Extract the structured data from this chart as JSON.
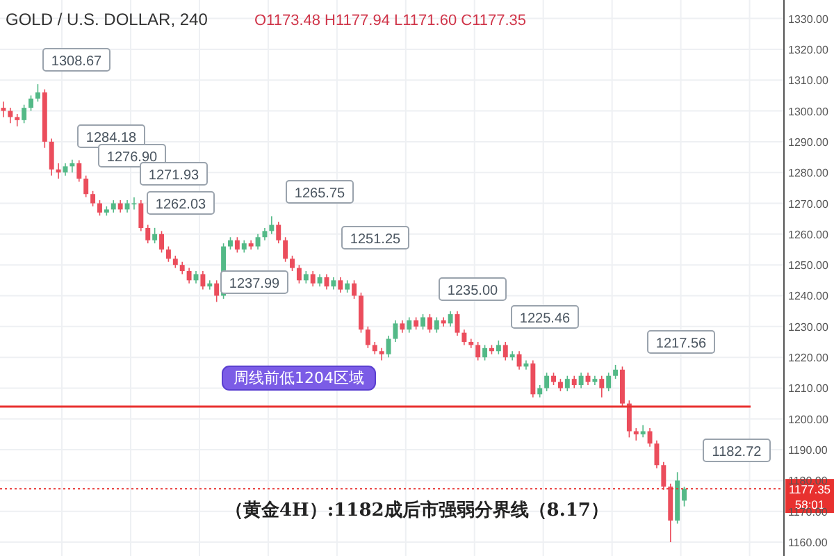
{
  "chart_data": {
    "type": "candlestick",
    "title": "GOLD / U.S. DOLLAR, 240",
    "subtitle": "O1173.48 H1177.94 L1171.60 C1177.35",
    "categories": [
      null,
      null,
      null,
      null,
      null,
      null,
      null,
      null,
      null,
      null,
      null,
      null,
      null,
      null,
      null,
      null,
      null,
      null,
      null,
      null,
      null,
      null,
      null,
      null,
      null,
      null,
      null,
      null,
      null,
      null,
      null,
      null,
      null,
      null,
      null,
      null,
      null,
      null,
      null,
      null,
      null,
      null,
      null,
      null,
      null,
      null,
      null,
      null,
      null,
      null,
      null,
      null,
      null,
      null,
      null,
      null,
      null,
      null,
      null,
      null,
      null,
      null,
      null,
      null,
      null,
      null,
      null,
      null,
      null,
      null,
      null,
      null,
      null,
      null,
      null,
      null,
      null,
      null,
      null,
      null,
      null,
      null,
      null,
      null,
      null,
      null,
      null,
      null,
      null,
      null,
      null,
      null,
      null,
      null,
      null,
      null,
      null,
      null,
      null,
      null,
      null,
      null,
      null,
      null,
      null,
      null,
      null,
      null,
      null,
      null,
      null,
      null,
      null,
      null
    ],
    "ohlc": [
      [
        1301,
        1303,
        1298,
        1300
      ],
      [
        1300,
        1301,
        1296,
        1298
      ],
      [
        1298,
        1299,
        1295,
        1297
      ],
      [
        1297,
        1302,
        1296,
        1301
      ],
      [
        1301,
        1305,
        1300,
        1304
      ],
      [
        1304,
        1308.67,
        1303,
        1306
      ],
      [
        1306,
        1307,
        1288,
        1290
      ],
      [
        1290,
        1291,
        1279,
        1281
      ],
      [
        1281,
        1283,
        1278,
        1280
      ],
      [
        1280,
        1283,
        1279,
        1282
      ],
      [
        1282,
        1284.18,
        1280,
        1283
      ],
      [
        1283,
        1284,
        1277,
        1278
      ],
      [
        1278,
        1279,
        1272,
        1273
      ],
      [
        1273,
        1274,
        1269,
        1270
      ],
      [
        1270,
        1271,
        1266,
        1267
      ],
      [
        1267,
        1269,
        1266,
        1268
      ],
      [
        1268,
        1271,
        1267,
        1270
      ],
      [
        1270,
        1271,
        1267,
        1268
      ],
      [
        1268,
        1271,
        1267,
        1270
      ],
      [
        1270,
        1271.93,
        1268,
        1270
      ],
      [
        1270,
        1271,
        1261,
        1262
      ],
      [
        1262,
        1263,
        1257,
        1258
      ],
      [
        1258,
        1262.03,
        1257,
        1260
      ],
      [
        1260,
        1261,
        1254,
        1255
      ],
      [
        1255,
        1256,
        1251,
        1252
      ],
      [
        1252,
        1253,
        1249,
        1250
      ],
      [
        1250,
        1251,
        1247,
        1248
      ],
      [
        1248,
        1249,
        1244,
        1245
      ],
      [
        1245,
        1248,
        1244,
        1247
      ],
      [
        1247,
        1248,
        1242,
        1243
      ],
      [
        1243,
        1245,
        1242,
        1244
      ],
      [
        1244,
        1245,
        1237.99,
        1240
      ],
      [
        1240,
        1257,
        1239,
        1256
      ],
      [
        1256,
        1259,
        1255,
        1258
      ],
      [
        1258,
        1259,
        1254,
        1255
      ],
      [
        1255,
        1258,
        1254,
        1257
      ],
      [
        1257,
        1258,
        1255,
        1256
      ],
      [
        1256,
        1260,
        1255,
        1259
      ],
      [
        1259,
        1262,
        1258,
        1261
      ],
      [
        1261,
        1265.75,
        1260,
        1263
      ],
      [
        1263,
        1264,
        1257,
        1258
      ],
      [
        1258,
        1259,
        1251,
        1252
      ],
      [
        1252,
        1253,
        1248,
        1249
      ],
      [
        1249,
        1250,
        1244,
        1245
      ],
      [
        1245,
        1248,
        1244,
        1247
      ],
      [
        1247,
        1248,
        1243,
        1244
      ],
      [
        1244,
        1247,
        1243,
        1246
      ],
      [
        1246,
        1247,
        1242,
        1243
      ],
      [
        1243,
        1246,
        1242,
        1245
      ],
      [
        1245,
        1246,
        1241,
        1242
      ],
      [
        1242,
        1245,
        1241,
        1244
      ],
      [
        1244,
        1245,
        1239,
        1240
      ],
      [
        1240,
        1241,
        1228,
        1229
      ],
      [
        1229,
        1230,
        1223,
        1224
      ],
      [
        1224,
        1225,
        1221,
        1222
      ],
      [
        1222,
        1223,
        1219,
        1221
      ],
      [
        1221,
        1227,
        1220,
        1226
      ],
      [
        1226,
        1232,
        1225,
        1231
      ],
      [
        1231,
        1232,
        1228,
        1229
      ],
      [
        1229,
        1233,
        1228,
        1232
      ],
      [
        1232,
        1233,
        1229,
        1230
      ],
      [
        1230,
        1234,
        1229,
        1233
      ],
      [
        1233,
        1234,
        1228,
        1229
      ],
      [
        1229,
        1233,
        1228,
        1232
      ],
      [
        1232,
        1233,
        1230,
        1231
      ],
      [
        1231,
        1235,
        1230,
        1234
      ],
      [
        1234,
        1235,
        1227,
        1228
      ],
      [
        1228,
        1229,
        1224,
        1225
      ],
      [
        1225,
        1226,
        1223,
        1224
      ],
      [
        1224,
        1225,
        1219,
        1220
      ],
      [
        1220,
        1224,
        1219,
        1223
      ],
      [
        1223,
        1224,
        1221,
        1222
      ],
      [
        1222,
        1225.46,
        1221,
        1224
      ],
      [
        1224,
        1225,
        1219,
        1220
      ],
      [
        1220,
        1222,
        1219,
        1221
      ],
      [
        1221,
        1222,
        1216,
        1217
      ],
      [
        1217,
        1219,
        1216,
        1218
      ],
      [
        1218,
        1219,
        1207,
        1208
      ],
      [
        1208,
        1211,
        1207,
        1210
      ],
      [
        1210,
        1215,
        1209,
        1214
      ],
      [
        1214,
        1215,
        1211,
        1212
      ],
      [
        1212,
        1213,
        1209,
        1210
      ],
      [
        1210,
        1214,
        1209,
        1213
      ],
      [
        1213,
        1214,
        1210,
        1211
      ],
      [
        1211,
        1215,
        1210,
        1214
      ],
      [
        1214,
        1215,
        1211,
        1212
      ],
      [
        1212,
        1214,
        1211,
        1213
      ],
      [
        1213,
        1214,
        1207,
        1210
      ],
      [
        1210,
        1215,
        1209,
        1214
      ],
      [
        1214,
        1217.56,
        1213,
        1216
      ],
      [
        1216,
        1217,
        1204,
        1205
      ],
      [
        1205,
        1206,
        1194,
        1196
      ],
      [
        1196,
        1197,
        1193,
        1195
      ],
      [
        1195,
        1198,
        1194,
        1196
      ],
      [
        1196,
        1197,
        1191,
        1192
      ],
      [
        1192,
        1193,
        1184,
        1185
      ],
      [
        1185,
        1186,
        1177,
        1178
      ],
      [
        1178,
        1179,
        1160,
        1167
      ],
      [
        1167,
        1182.72,
        1166,
        1180
      ],
      [
        1173.48,
        1177.94,
        1171.6,
        1177.35
      ],
      null,
      null,
      null,
      null,
      null,
      null,
      null,
      null,
      null,
      null,
      null,
      null,
      null,
      null
    ],
    "ylim": [
      1155.5,
      1336
    ],
    "yticks": [
      {
        "value": 1160,
        "label": "1160.00"
      },
      {
        "value": 1170,
        "label": "1170.00"
      },
      {
        "value": 1180,
        "label": "1180.00"
      },
      {
        "value": 1190,
        "label": "1190.00"
      },
      {
        "value": 1200,
        "label": "1200.00"
      },
      {
        "value": 1210,
        "label": "1210.00"
      },
      {
        "value": 1220,
        "label": "1220.00"
      },
      {
        "value": 1230,
        "label": "1230.00"
      },
      {
        "value": 1240,
        "label": "1240.00"
      },
      {
        "value": 1250,
        "label": "1250.00"
      },
      {
        "value": 1260,
        "label": "1260.00"
      },
      {
        "value": 1270,
        "label": "1270.00"
      },
      {
        "value": 1280,
        "label": "1280.00"
      },
      {
        "value": 1290,
        "label": "1290.00"
      },
      {
        "value": 1300,
        "label": "1300.00"
      },
      {
        "value": 1310,
        "label": "1310.00"
      },
      {
        "value": 1320,
        "label": "1320.00"
      },
      {
        "value": 1330,
        "label": "1330.00"
      }
    ],
    "grid": true,
    "tick_labels": "y",
    "ref_lines": [
      {
        "axis": "y",
        "value": 1204,
        "label": "周线前低1204区域",
        "color": "#e8312f",
        "line_style": "solid"
      },
      {
        "axis": "y",
        "value": 1177.35,
        "label": "1177.35",
        "color": "#e8312f",
        "line_style": "dotted"
      }
    ],
    "annotations": [
      "1308.67",
      "1284.18",
      "1276.90",
      "1271.93",
      "1262.03",
      "1265.75",
      "1251.25",
      "1237.99",
      "1235.00",
      "1225.46",
      "1217.56",
      "1182.72",
      "（黄金4H）:1182成后市强弱分界线（8.17）",
      "58:01"
    ]
  }
}
